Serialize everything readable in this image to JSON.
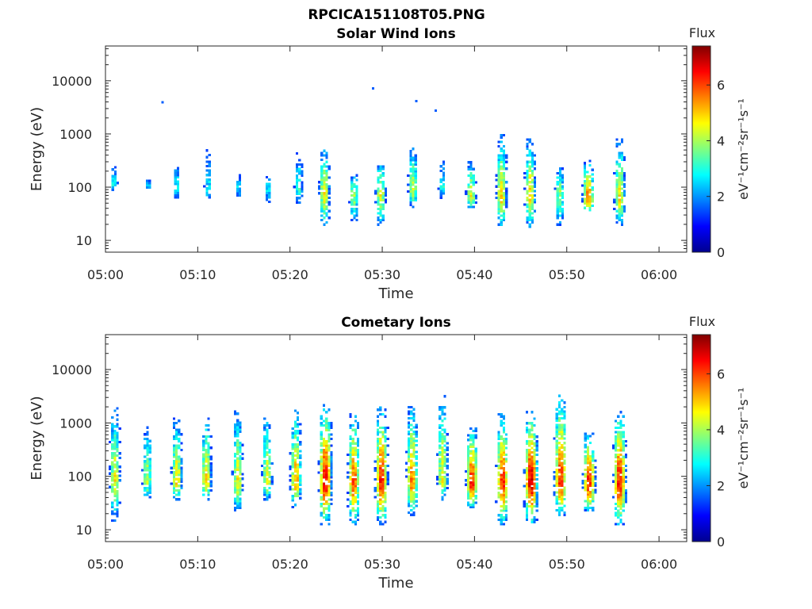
{
  "figure_title": "RPCICA151108T05.PNG",
  "colors": {
    "axis": "#262626",
    "background": "#ffffff",
    "colormap": "jet"
  },
  "chart_data": [
    {
      "type": "heatmap",
      "title": "Solar Wind Ions",
      "xlabel": "Time",
      "ylabel": "Energy (eV)",
      "x_unit": "time (HH:MM)",
      "xlim": [
        "05:00",
        "06:03"
      ],
      "x_ticks": [
        "05:00",
        "05:10",
        "05:20",
        "05:30",
        "05:40",
        "05:50",
        "06:00"
      ],
      "y_scale": "log",
      "ylim": [
        6,
        45000
      ],
      "y_ticks": [
        "10",
        "100",
        "1000",
        "10000"
      ],
      "y_tick_values": [
        10,
        100,
        1000,
        10000
      ],
      "colorbar": {
        "label": "Flux",
        "unit": "eV⁻¹cm⁻²sr⁻¹s⁻¹",
        "range": [
          0,
          7.4
        ],
        "ticks": [
          "0",
          "2",
          "4",
          "6"
        ],
        "tick_values": [
          0,
          2,
          4,
          6
        ],
        "colormap": "jet"
      },
      "grid": false,
      "bursts": [
        {
          "time": "05:00.8",
          "peak_flux": 2.9,
          "peak_energy": 110,
          "energy_range": [
            70,
            260
          ]
        },
        {
          "time": "05:04.5",
          "peak_flux": 2.6,
          "peak_energy": 100,
          "energy_range": [
            85,
            130
          ]
        },
        {
          "time": "05:07.6",
          "peak_flux": 2.9,
          "peak_energy": 100,
          "energy_range": [
            50,
            260
          ]
        },
        {
          "time": "05:11.0",
          "peak_flux": 2.8,
          "peak_energy": 90,
          "energy_range": [
            50,
            560
          ]
        },
        {
          "time": "05:14.3",
          "peak_flux": 2.7,
          "peak_energy": 90,
          "energy_range": [
            60,
            170
          ]
        },
        {
          "time": "05:17.5",
          "peak_flux": 2.8,
          "peak_energy": 85,
          "energy_range": [
            50,
            150
          ]
        },
        {
          "time": "05:20.8",
          "peak_flux": 3.3,
          "peak_energy": 90,
          "energy_range": [
            40,
            500
          ]
        },
        {
          "time": "05:23.6",
          "peak_flux": 4.9,
          "peak_energy": 75,
          "energy_range": [
            17,
            520
          ]
        },
        {
          "time": "05:26.8",
          "peak_flux": 4.0,
          "peak_energy": 70,
          "energy_range": [
            17,
            170
          ]
        },
        {
          "time": "05:29.7",
          "peak_flux": 4.6,
          "peak_energy": 70,
          "energy_range": [
            17,
            300
          ]
        },
        {
          "time": "05:33.2",
          "peak_flux": 4.3,
          "peak_energy": 80,
          "energy_range": [
            40,
            650
          ]
        },
        {
          "time": "05:36.4",
          "peak_flux": 3.0,
          "peak_energy": 90,
          "energy_range": [
            60,
            320
          ]
        },
        {
          "time": "05:39.5",
          "peak_flux": 4.6,
          "peak_energy": 60,
          "energy_range": [
            40,
            320
          ]
        },
        {
          "time": "05:42.8",
          "peak_flux": 4.9,
          "peak_energy": 60,
          "energy_range": [
            17,
            900
          ]
        },
        {
          "time": "05:45.9",
          "peak_flux": 5.0,
          "peak_energy": 65,
          "energy_range": [
            17,
            850
          ]
        },
        {
          "time": "05:49.1",
          "peak_flux": 4.0,
          "peak_energy": 65,
          "energy_range": [
            17,
            260
          ]
        },
        {
          "time": "05:52.2",
          "peak_flux": 5.8,
          "peak_energy": 55,
          "energy_range": [
            35,
            300
          ]
        },
        {
          "time": "05:55.6",
          "peak_flux": 4.9,
          "peak_energy": 60,
          "energy_range": [
            17,
            800
          ]
        }
      ],
      "isolated_points": [
        {
          "time": "05:06.2",
          "energy": 3900,
          "flux": 1.6
        },
        {
          "time": "05:29.0",
          "energy": 7100,
          "flux": 1.6
        },
        {
          "time": "05:33.7",
          "energy": 4100,
          "flux": 1.6
        },
        {
          "time": "05:35.8",
          "energy": 2700,
          "flux": 1.6
        }
      ]
    },
    {
      "type": "heatmap",
      "title": "Cometary Ions",
      "xlabel": "Time",
      "ylabel": "Energy (eV)",
      "x_unit": "time (HH:MM)",
      "xlim": [
        "05:00",
        "06:03"
      ],
      "x_ticks": [
        "05:00",
        "05:10",
        "05:20",
        "05:30",
        "05:40",
        "05:50",
        "06:00"
      ],
      "y_scale": "log",
      "ylim": [
        6,
        45000
      ],
      "y_ticks": [
        "10",
        "100",
        "1000",
        "10000"
      ],
      "y_tick_values": [
        10,
        100,
        1000,
        10000
      ],
      "colorbar": {
        "label": "Flux",
        "unit": "eV⁻¹cm⁻²sr⁻¹s⁻¹",
        "range": [
          0,
          7.4
        ],
        "ticks": [
          "0",
          "2",
          "4",
          "6"
        ],
        "tick_values": [
          0,
          2,
          4,
          6
        ],
        "colormap": "jet"
      },
      "grid": false,
      "bursts": [
        {
          "time": "05:00.9",
          "peak_flux": 4.7,
          "peak_energy": 80,
          "energy_range": [
            14,
            2000
          ]
        },
        {
          "time": "05:04.4",
          "peak_flux": 4.3,
          "peak_energy": 80,
          "energy_range": [
            35,
            800
          ]
        },
        {
          "time": "05:07.6",
          "peak_flux": 5.0,
          "peak_energy": 75,
          "energy_range": [
            35,
            1200
          ]
        },
        {
          "time": "05:10.8",
          "peak_flux": 5.0,
          "peak_energy": 75,
          "energy_range": [
            35,
            1300
          ]
        },
        {
          "time": "05:14.2",
          "peak_flux": 4.7,
          "peak_energy": 80,
          "energy_range": [
            20,
            1600
          ]
        },
        {
          "time": "05:17.4",
          "peak_flux": 4.7,
          "peak_energy": 80,
          "energy_range": [
            35,
            1500
          ]
        },
        {
          "time": "05:20.5",
          "peak_flux": 5.4,
          "peak_energy": 75,
          "energy_range": [
            25,
            1800
          ]
        },
        {
          "time": "05:23.7",
          "peak_flux": 6.6,
          "peak_energy": 75,
          "energy_range": [
            12,
            2200
          ]
        },
        {
          "time": "05:26.8",
          "peak_flux": 5.9,
          "peak_energy": 70,
          "energy_range": [
            12,
            1500
          ]
        },
        {
          "time": "05:29.8",
          "peak_flux": 6.4,
          "peak_energy": 70,
          "energy_range": [
            12,
            2000
          ]
        },
        {
          "time": "05:33.1",
          "peak_flux": 5.6,
          "peak_energy": 75,
          "energy_range": [
            18,
            2000
          ]
        },
        {
          "time": "05:36.4",
          "peak_flux": 4.8,
          "peak_energy": 80,
          "energy_range": [
            35,
            3300
          ]
        },
        {
          "time": "05:39.6",
          "peak_flux": 6.3,
          "peak_energy": 70,
          "energy_range": [
            25,
            800
          ]
        },
        {
          "time": "05:42.9",
          "peak_flux": 6.3,
          "peak_energy": 70,
          "energy_range": [
            12,
            1400
          ]
        },
        {
          "time": "05:46.0",
          "peak_flux": 6.9,
          "peak_energy": 70,
          "energy_range": [
            12,
            1600
          ]
        },
        {
          "time": "05:49.2",
          "peak_flux": 6.3,
          "peak_energy": 70,
          "energy_range": [
            18,
            3500
          ]
        },
        {
          "time": "05:52.3",
          "peak_flux": 6.4,
          "peak_energy": 70,
          "energy_range": [
            20,
            650
          ]
        },
        {
          "time": "05:55.6",
          "peak_flux": 6.5,
          "peak_energy": 70,
          "energy_range": [
            12,
            1600
          ]
        }
      ],
      "isolated_points": []
    }
  ]
}
